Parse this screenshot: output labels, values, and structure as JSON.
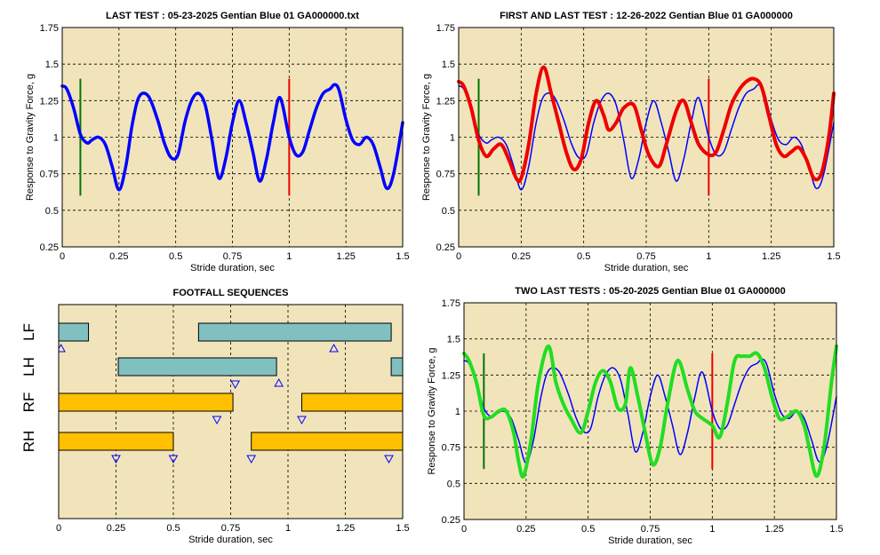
{
  "colors": {
    "plot_bg": "#f1e4bb",
    "grid": "#000000",
    "last_test": "#0000ff",
    "first_test": "#ee0000",
    "prev_test": "#22dd22",
    "marker_green": "#007700",
    "marker_red": "#ee0000",
    "bar_teal": "#80c0c0",
    "bar_yellow": "#ffc000",
    "triangle": "#0000ff"
  },
  "chart_data": [
    {
      "id": "last_test",
      "type": "line",
      "title": "LAST TEST : 05-23-2025 Gentian Blue 01 GA000000.txt",
      "xlabel": "Stride duration, sec",
      "ylabel": "Response to Gravity Force, g",
      "xlim": [
        0,
        1.5
      ],
      "ylim": [
        0.25,
        1.75
      ],
      "xticks": [
        "0",
        "0.25",
        "0.5",
        "0.75",
        "1",
        "1.25",
        "1.5"
      ],
      "yticks": [
        "0.25",
        "0.5",
        "0.75",
        "1",
        "1.25",
        "1.5",
        "1.75"
      ],
      "grid": true,
      "markers": [
        {
          "x": 0.08,
          "y0": 0.6,
          "y1": 1.4,
          "color": "marker_green"
        },
        {
          "x": 1.0,
          "y0": 0.6,
          "y1": 1.4,
          "color": "marker_red"
        }
      ],
      "series": [
        {
          "color": "last_test",
          "width": 3.5,
          "x": [
            0,
            0.02,
            0.05,
            0.08,
            0.11,
            0.13,
            0.16,
            0.19,
            0.22,
            0.25,
            0.28,
            0.31,
            0.34,
            0.38,
            0.42,
            0.45,
            0.48,
            0.51,
            0.54,
            0.57,
            0.6,
            0.63,
            0.66,
            0.69,
            0.72,
            0.75,
            0.78,
            0.81,
            0.84,
            0.87,
            0.9,
            0.93,
            0.96,
            1.0,
            1.03,
            1.06,
            1.09,
            1.12,
            1.15,
            1.18,
            1.2,
            1.22,
            1.25,
            1.28,
            1.31,
            1.34,
            1.37,
            1.4,
            1.43,
            1.46,
            1.5
          ],
          "y": [
            1.35,
            1.33,
            1.2,
            1.02,
            0.96,
            0.98,
            1.0,
            0.95,
            0.8,
            0.64,
            0.8,
            1.1,
            1.28,
            1.28,
            1.12,
            0.96,
            0.86,
            0.88,
            1.1,
            1.25,
            1.3,
            1.22,
            0.98,
            0.72,
            0.85,
            1.1,
            1.25,
            1.1,
            0.9,
            0.7,
            0.85,
            1.1,
            1.27,
            1.0,
            0.88,
            0.9,
            1.05,
            1.2,
            1.3,
            1.33,
            1.36,
            1.32,
            1.12,
            0.98,
            0.95,
            1.0,
            0.95,
            0.8,
            0.65,
            0.75,
            1.1
          ]
        }
      ]
    },
    {
      "id": "first_and_last",
      "type": "line",
      "title": "FIRST AND LAST TEST : 12-26-2022 Gentian Blue 01 GA000000",
      "xlabel": "Stride duration, sec",
      "ylabel": "Response to Gravity Force, g",
      "xlim": [
        0,
        1.5
      ],
      "ylim": [
        0.25,
        1.75
      ],
      "xticks": [
        "0",
        "0.25",
        "0.5",
        "0.75",
        "1",
        "1.25",
        "1.5"
      ],
      "yticks": [
        "0.25",
        "0.5",
        "0.75",
        "1",
        "1.25",
        "1.5",
        "1.75"
      ],
      "grid": true,
      "markers": [
        {
          "x": 0.08,
          "y0": 0.6,
          "y1": 1.4,
          "color": "marker_green"
        },
        {
          "x": 1.0,
          "y0": 0.6,
          "y1": 1.4,
          "color": "marker_red"
        }
      ],
      "series": [
        {
          "color": "last_test",
          "width": 1.5,
          "x": [
            0,
            0.02,
            0.05,
            0.08,
            0.11,
            0.13,
            0.16,
            0.19,
            0.22,
            0.25,
            0.28,
            0.31,
            0.34,
            0.38,
            0.42,
            0.45,
            0.48,
            0.51,
            0.54,
            0.57,
            0.6,
            0.63,
            0.66,
            0.69,
            0.72,
            0.75,
            0.78,
            0.81,
            0.84,
            0.87,
            0.9,
            0.93,
            0.96,
            1.0,
            1.03,
            1.06,
            1.09,
            1.12,
            1.15,
            1.18,
            1.2,
            1.22,
            1.25,
            1.28,
            1.31,
            1.34,
            1.37,
            1.4,
            1.43,
            1.46,
            1.5
          ],
          "y": [
            1.35,
            1.33,
            1.2,
            1.02,
            0.96,
            0.98,
            1.0,
            0.95,
            0.8,
            0.64,
            0.8,
            1.1,
            1.28,
            1.28,
            1.12,
            0.96,
            0.86,
            0.88,
            1.1,
            1.25,
            1.3,
            1.22,
            0.98,
            0.72,
            0.85,
            1.1,
            1.25,
            1.1,
            0.9,
            0.7,
            0.85,
            1.1,
            1.27,
            1.0,
            0.88,
            0.9,
            1.05,
            1.2,
            1.3,
            1.33,
            1.36,
            1.32,
            1.12,
            0.98,
            0.95,
            1.0,
            0.95,
            0.8,
            0.65,
            0.75,
            1.1
          ]
        },
        {
          "color": "first_test",
          "width": 4,
          "x": [
            0,
            0.02,
            0.05,
            0.08,
            0.11,
            0.14,
            0.17,
            0.2,
            0.23,
            0.25,
            0.28,
            0.31,
            0.34,
            0.37,
            0.4,
            0.43,
            0.46,
            0.49,
            0.52,
            0.55,
            0.58,
            0.6,
            0.63,
            0.66,
            0.7,
            0.73,
            0.76,
            0.8,
            0.83,
            0.87,
            0.9,
            0.93,
            0.96,
            1.0,
            1.03,
            1.06,
            1.09,
            1.12,
            1.15,
            1.18,
            1.21,
            1.24,
            1.27,
            1.3,
            1.33,
            1.36,
            1.39,
            1.42,
            1.45,
            1.48,
            1.5
          ],
          "y": [
            1.38,
            1.35,
            1.2,
            0.98,
            0.87,
            0.92,
            0.95,
            0.85,
            0.72,
            0.72,
            0.95,
            1.3,
            1.48,
            1.3,
            1.1,
            0.9,
            0.78,
            0.85,
            1.1,
            1.25,
            1.15,
            1.05,
            1.1,
            1.2,
            1.22,
            1.05,
            0.88,
            0.8,
            0.95,
            1.18,
            1.25,
            1.1,
            0.95,
            0.88,
            0.9,
            1.05,
            1.22,
            1.32,
            1.38,
            1.4,
            1.35,
            1.15,
            0.95,
            0.87,
            0.9,
            0.93,
            0.85,
            0.72,
            0.75,
            1.0,
            1.3
          ]
        }
      ]
    },
    {
      "id": "footfall",
      "type": "gantt",
      "title": "FOOTFALL SEQUENCES",
      "xlabel": "Stride duration, sec",
      "xlim": [
        0,
        1.5
      ],
      "xticks": [
        "0",
        "0.25",
        "0.5",
        "0.75",
        "1",
        "1.25",
        "1.5"
      ],
      "grid": true,
      "rows": [
        {
          "label": "LF",
          "color": "bar_teal",
          "intervals": [
            [
              0,
              0.13
            ],
            [
              0.61,
              1.45
            ]
          ],
          "triangles_up": [
            0.01,
            1.2
          ],
          "triangles_down": []
        },
        {
          "label": "LH",
          "color": "bar_teal",
          "intervals": [
            [
              0.26,
              0.95
            ],
            [
              1.45,
              1.5
            ]
          ],
          "triangles_up": [
            0.96
          ],
          "triangles_down": [
            0.77
          ]
        },
        {
          "label": "RF",
          "color": "bar_yellow",
          "intervals": [
            [
              0,
              0.76
            ],
            [
              1.06,
              1.5
            ]
          ],
          "triangles_up": [],
          "triangles_down": [
            0.69,
            1.06
          ]
        },
        {
          "label": "RH",
          "color": "bar_yellow",
          "intervals": [
            [
              0,
              0.5
            ],
            [
              0.84,
              1.5
            ]
          ],
          "triangles_up": [],
          "triangles_down": [
            0.25,
            0.5,
            0.84,
            1.44
          ]
        }
      ]
    },
    {
      "id": "two_last",
      "type": "line",
      "title": "TWO LAST TESTS : 05-20-2025 Gentian Blue 01 GA000000",
      "xlabel": "Stride duration, sec",
      "ylabel": "Response to Gravity Force, g",
      "xlim": [
        0,
        1.5
      ],
      "ylim": [
        0.25,
        1.75
      ],
      "xticks": [
        "0",
        "0.25",
        "0.5",
        "0.75",
        "1",
        "1.25",
        "1.5"
      ],
      "yticks": [
        "0.25",
        "0.5",
        "0.75",
        "1",
        "1.25",
        "1.5",
        "1.75"
      ],
      "grid": true,
      "markers": [
        {
          "x": 0.08,
          "y0": 0.6,
          "y1": 1.4,
          "color": "marker_green"
        },
        {
          "x": 1.0,
          "y0": 0.6,
          "y1": 1.4,
          "color": "marker_red"
        }
      ],
      "series": [
        {
          "color": "last_test",
          "width": 1.5,
          "x": [
            0,
            0.02,
            0.05,
            0.08,
            0.11,
            0.13,
            0.16,
            0.19,
            0.22,
            0.25,
            0.28,
            0.31,
            0.34,
            0.38,
            0.42,
            0.45,
            0.48,
            0.51,
            0.54,
            0.57,
            0.6,
            0.63,
            0.66,
            0.69,
            0.72,
            0.75,
            0.78,
            0.81,
            0.84,
            0.87,
            0.9,
            0.93,
            0.96,
            1.0,
            1.03,
            1.06,
            1.09,
            1.12,
            1.15,
            1.18,
            1.2,
            1.22,
            1.25,
            1.28,
            1.31,
            1.34,
            1.37,
            1.4,
            1.43,
            1.46,
            1.5
          ],
          "y": [
            1.35,
            1.33,
            1.2,
            1.02,
            0.96,
            0.98,
            1.0,
            0.95,
            0.8,
            0.64,
            0.8,
            1.1,
            1.28,
            1.28,
            1.12,
            0.96,
            0.86,
            0.88,
            1.1,
            1.25,
            1.3,
            1.22,
            0.98,
            0.72,
            0.85,
            1.1,
            1.25,
            1.1,
            0.9,
            0.7,
            0.85,
            1.1,
            1.27,
            1.0,
            0.88,
            0.9,
            1.05,
            1.2,
            1.3,
            1.33,
            1.36,
            1.32,
            1.12,
            0.98,
            0.95,
            1.0,
            0.95,
            0.8,
            0.65,
            0.75,
            1.1
          ]
        },
        {
          "color": "prev_test",
          "width": 4,
          "x": [
            0,
            0.02,
            0.05,
            0.08,
            0.11,
            0.14,
            0.17,
            0.2,
            0.22,
            0.24,
            0.27,
            0.3,
            0.34,
            0.37,
            0.4,
            0.43,
            0.47,
            0.5,
            0.53,
            0.56,
            0.59,
            0.62,
            0.65,
            0.67,
            0.7,
            0.73,
            0.76,
            0.79,
            0.82,
            0.86,
            0.9,
            0.93,
            0.96,
            1.0,
            1.03,
            1.06,
            1.09,
            1.12,
            1.15,
            1.18,
            1.21,
            1.24,
            1.27,
            1.3,
            1.34,
            1.37,
            1.39,
            1.42,
            1.45,
            1.48,
            1.5
          ],
          "y": [
            1.4,
            1.35,
            1.2,
            0.97,
            0.96,
            1.0,
            1.0,
            0.85,
            0.65,
            0.55,
            0.8,
            1.2,
            1.45,
            1.2,
            1.05,
            0.95,
            0.85,
            1.0,
            1.2,
            1.28,
            1.2,
            1.02,
            1.05,
            1.3,
            1.1,
            0.85,
            0.63,
            0.75,
            1.05,
            1.35,
            1.15,
            1.0,
            0.95,
            0.9,
            0.82,
            1.05,
            1.35,
            1.38,
            1.38,
            1.4,
            1.3,
            1.1,
            0.95,
            0.96,
            1.0,
            0.9,
            0.75,
            0.55,
            0.75,
            1.2,
            1.45
          ]
        }
      ]
    }
  ]
}
